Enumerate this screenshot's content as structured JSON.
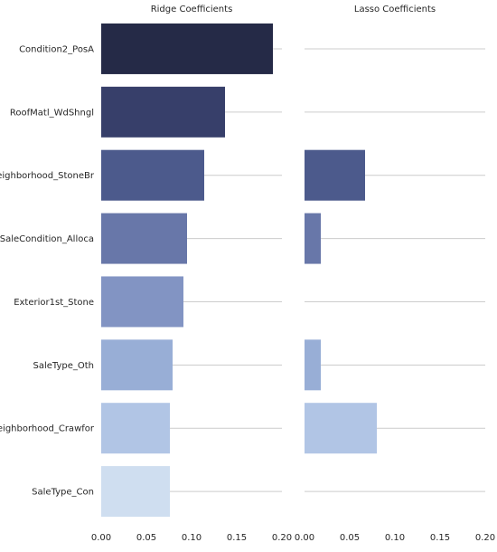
{
  "chart_data": [
    {
      "type": "bar",
      "orientation": "horizontal",
      "title": "Ridge Coefficients",
      "categories": [
        "Condition2_PosA",
        "RoofMatl_WdShngl",
        "Neighborhood_StoneBr",
        "SaleCondition_Alloca",
        "Exterior1st_Stone",
        "SaleType_Oth",
        "Neighborhood_Crawfor",
        "SaleType_Con"
      ],
      "values": [
        0.19,
        0.137,
        0.114,
        0.095,
        0.091,
        0.079,
        0.076,
        0.076
      ],
      "xlim": [
        0,
        0.2
      ],
      "xticks": [
        "0.00",
        "0.05",
        "0.10",
        "0.15",
        "0.20"
      ],
      "grid": "horizontal lines at category centers"
    },
    {
      "type": "bar",
      "orientation": "horizontal",
      "title": "Lasso Coefficients",
      "categories": [
        "Condition2_PosA",
        "RoofMatl_WdShngl",
        "Neighborhood_StoneBr",
        "SaleCondition_Alloca",
        "Exterior1st_Stone",
        "SaleType_Oth",
        "Neighborhood_Crawfor",
        "SaleType_Con"
      ],
      "values": [
        0,
        0,
        0.067,
        0.018,
        0,
        0.018,
        0.08,
        0
      ],
      "xlim": [
        0,
        0.2
      ],
      "xticks": [
        "0.00",
        "0.05",
        "0.10",
        "0.15",
        "0.20"
      ],
      "grid": "horizontal lines at category centers"
    }
  ],
  "colors": [
    "#252a47",
    "#373f6a",
    "#4c5a8c",
    "#6877a9",
    "#8294c3",
    "#98aed6",
    "#b1c5e5",
    "#cfdef0"
  ],
  "grid_color": "#cccccc"
}
